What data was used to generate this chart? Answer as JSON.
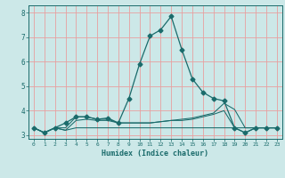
{
  "title": "",
  "xlabel": "Humidex (Indice chaleur)",
  "bg_color": "#cce8e8",
  "line_color": "#1a6b6b",
  "grid_color": "#e8a0a0",
  "xlim": [
    -0.5,
    23.5
  ],
  "ylim": [
    2.85,
    8.3
  ],
  "yticks": [
    3,
    4,
    5,
    6,
    7,
    8
  ],
  "xticks": [
    0,
    1,
    2,
    3,
    4,
    5,
    6,
    7,
    8,
    9,
    10,
    11,
    12,
    13,
    14,
    15,
    16,
    17,
    18,
    19,
    20,
    21,
    22,
    23
  ],
  "series": [
    {
      "x": [
        0,
        1,
        2,
        3,
        4,
        5,
        6,
        7,
        8,
        9,
        10,
        11,
        12,
        13,
        14,
        15,
        16,
        17,
        18,
        19,
        20,
        21,
        22,
        23
      ],
      "y": [
        3.3,
        3.1,
        3.3,
        3.5,
        3.75,
        3.75,
        3.65,
        3.7,
        3.5,
        4.5,
        5.9,
        7.05,
        7.3,
        7.85,
        6.5,
        5.3,
        4.75,
        4.5,
        4.4,
        3.3,
        3.1,
        3.3,
        3.3,
        3.3
      ],
      "marker": "D",
      "markersize": 2.5
    },
    {
      "x": [
        0,
        1,
        2,
        3,
        4,
        5,
        6,
        7,
        8,
        9,
        10,
        11,
        12,
        13,
        14,
        15,
        16,
        17,
        18,
        19,
        20,
        21,
        22,
        23
      ],
      "y": [
        3.3,
        3.1,
        3.3,
        3.3,
        3.75,
        3.75,
        3.65,
        3.65,
        3.5,
        3.5,
        3.5,
        3.5,
        3.55,
        3.6,
        3.6,
        3.65,
        3.75,
        3.85,
        4.0,
        3.3,
        3.1,
        3.3,
        3.3,
        3.3
      ],
      "marker": null
    },
    {
      "x": [
        0,
        1,
        2,
        3,
        4,
        5,
        6,
        7,
        8,
        9,
        10,
        11,
        12,
        13,
        14,
        15,
        16,
        17,
        18,
        19,
        20,
        21,
        22,
        23
      ],
      "y": [
        3.3,
        3.1,
        3.3,
        3.2,
        3.6,
        3.65,
        3.6,
        3.6,
        3.5,
        3.5,
        3.5,
        3.5,
        3.55,
        3.6,
        3.65,
        3.7,
        3.8,
        3.9,
        4.3,
        4.05,
        3.3,
        3.3,
        3.3,
        3.3
      ],
      "marker": null
    },
    {
      "x": [
        0,
        1,
        2,
        3,
        4,
        5,
        6,
        7,
        8,
        9,
        10,
        11,
        12,
        13,
        14,
        15,
        16,
        17,
        18,
        19,
        20,
        21,
        22,
        23
      ],
      "y": [
        3.3,
        3.1,
        3.3,
        3.2,
        3.3,
        3.3,
        3.3,
        3.3,
        3.3,
        3.3,
        3.3,
        3.3,
        3.3,
        3.3,
        3.3,
        3.3,
        3.3,
        3.3,
        3.3,
        3.3,
        3.3,
        3.3,
        3.3,
        3.3
      ],
      "marker": null
    }
  ]
}
